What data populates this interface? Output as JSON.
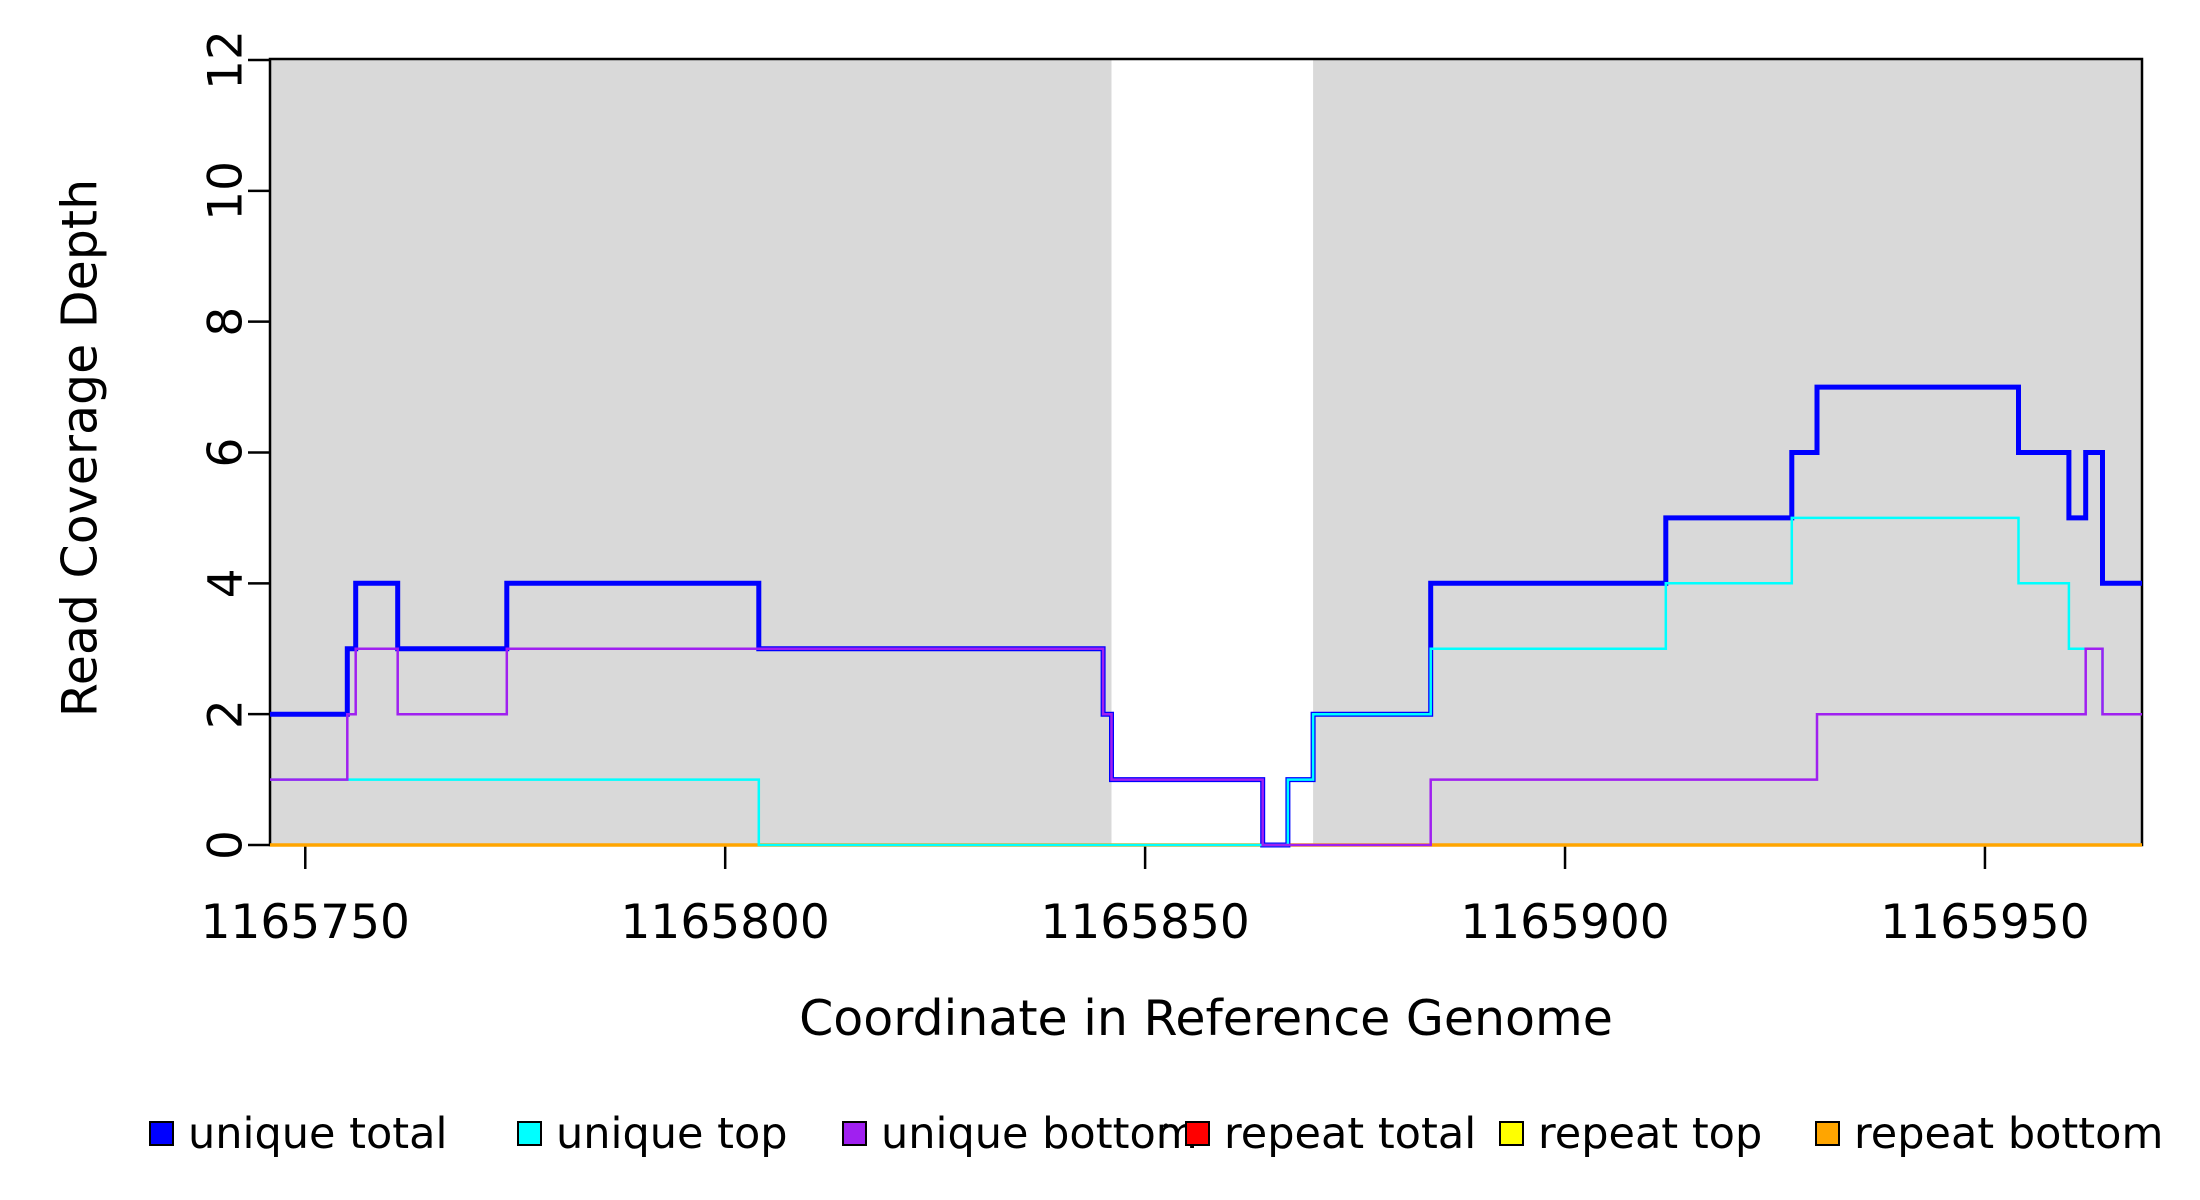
{
  "figure": {
    "background": "#FFFFFF",
    "plot_box_color": "#000000",
    "shading_color": "#D9D9D9"
  },
  "chart_data": {
    "type": "line",
    "subtype": "step-coverage",
    "title": "",
    "xlabel": "Coordinate in Reference Genome",
    "ylabel": "Read Coverage Depth",
    "xlim": [
      1165745.8,
      1165968.7
    ],
    "ylim": [
      0,
      12
    ],
    "x_ticks": [
      1165750,
      1165800,
      1165850,
      1165900,
      1165950
    ],
    "y_ticks": [
      0,
      2,
      4,
      6,
      8,
      10,
      12
    ],
    "grid": false,
    "legend_position": "bottom",
    "step_style": "hv",
    "shaded_regions": [
      {
        "x_start": 1165745.8,
        "x_end": 1165846,
        "color": "#D9D9D9"
      },
      {
        "x_start": 1165870,
        "x_end": 1165968.7,
        "color": "#D9D9D9"
      }
    ],
    "draw_order": [
      "repeat total",
      "repeat top",
      "repeat bottom",
      "unique total",
      "unique top",
      "unique bottom"
    ],
    "series": [
      {
        "name": "unique total",
        "color": "#0000FF",
        "line_width": 5,
        "steps": [
          [
            1165745.8,
            2
          ],
          [
            1165755,
            3
          ],
          [
            1165756,
            4
          ],
          [
            1165761,
            3
          ],
          [
            1165774,
            4
          ],
          [
            1165804,
            3
          ],
          [
            1165845,
            2
          ],
          [
            1165846,
            1
          ],
          [
            1165864,
            0
          ],
          [
            1165867,
            1
          ],
          [
            1165870,
            2
          ],
          [
            1165884,
            4
          ],
          [
            1165912,
            5
          ],
          [
            1165927,
            6
          ],
          [
            1165930,
            7
          ],
          [
            1165954,
            6
          ],
          [
            1165960,
            5
          ],
          [
            1165962,
            6
          ],
          [
            1165964,
            4
          ],
          [
            1165968.7,
            4
          ]
        ]
      },
      {
        "name": "unique top",
        "color": "#00FFFF",
        "line_width": 2.5,
        "steps": [
          [
            1165745.8,
            1
          ],
          [
            1165804,
            0
          ],
          [
            1165867,
            1
          ],
          [
            1165870,
            2
          ],
          [
            1165884,
            3
          ],
          [
            1165912,
            4
          ],
          [
            1165927,
            5
          ],
          [
            1165954,
            4
          ],
          [
            1165960,
            3
          ],
          [
            1165964,
            2
          ],
          [
            1165968.7,
            2
          ]
        ]
      },
      {
        "name": "unique bottom",
        "color": "#A020F0",
        "line_width": 2.5,
        "steps": [
          [
            1165745.8,
            1
          ],
          [
            1165755,
            2
          ],
          [
            1165756,
            3
          ],
          [
            1165761,
            2
          ],
          [
            1165774,
            3
          ],
          [
            1165845,
            2
          ],
          [
            1165846,
            1
          ],
          [
            1165864,
            0
          ],
          [
            1165884,
            1
          ],
          [
            1165930,
            2
          ],
          [
            1165962,
            3
          ],
          [
            1165964,
            2
          ],
          [
            1165968.7,
            2
          ]
        ]
      },
      {
        "name": "repeat total",
        "color": "#FF0000",
        "line_width": 3,
        "steps": [
          [
            1165745.8,
            0
          ],
          [
            1165968.7,
            0
          ]
        ]
      },
      {
        "name": "repeat top",
        "color": "#FFFF00",
        "line_width": 3,
        "steps": [
          [
            1165745.8,
            0
          ],
          [
            1165968.7,
            0
          ]
        ]
      },
      {
        "name": "repeat bottom",
        "color": "#FFA500",
        "line_width": 3.5,
        "steps": [
          [
            1165745.8,
            0
          ],
          [
            1165968.7,
            0
          ]
        ]
      }
    ]
  },
  "legend": {
    "items": [
      {
        "label": "unique total",
        "color": "#0000FF"
      },
      {
        "label": "unique top",
        "color": "#00FFFF"
      },
      {
        "label": "unique bottom",
        "color": "#A020F0"
      },
      {
        "label": "repeat total",
        "color": "#FF0000"
      },
      {
        "label": "repeat top",
        "color": "#FFFF00"
      },
      {
        "label": "repeat bottom",
        "color": "#FFA500"
      }
    ]
  }
}
